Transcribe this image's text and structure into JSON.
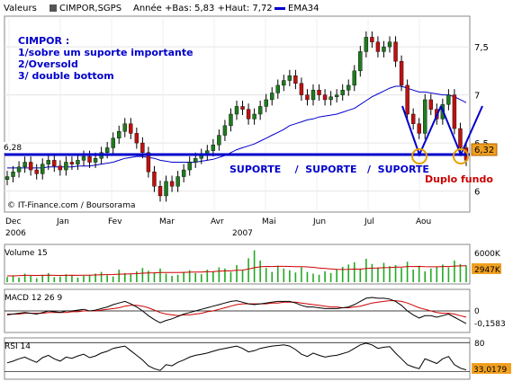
{
  "header": {
    "label_valeurs": "Valeurs",
    "ticker": "CIMPOR,SGPS",
    "range_text": "Année +Bas: 5,83 +Haut: 7,72",
    "ema_legend": "EMA34"
  },
  "annotations": {
    "note_title": "CIMPOR :",
    "note_line1": "1/sobre um suporte importante",
    "note_line2": "2/Oversold",
    "note_line3": "3/ double bottom",
    "support_label": "SUPORTE    /  SUPORTE   /  SUPORTE",
    "double_bottom": "Duplo fundo",
    "left_price": "6,28",
    "copyright": "© IT-Finance.com / Boursorama"
  },
  "colors": {
    "price_up": "#1f7a1f",
    "price_down": "#c01010",
    "ema": "#0000cc",
    "support": "#0000cc",
    "annotation_red": "#cc0000",
    "marker": "#e8a000",
    "last_price_bg": "#f0a020"
  },
  "chart_data": [
    {
      "type": "candlestick",
      "title": "CIMPOR,SGPS",
      "x_labels": [
        "Dec",
        "Jan",
        "Fev",
        "Mar",
        "Avr",
        "Mai",
        "Jun",
        "Jul",
        "Aou"
      ],
      "year_labels": [
        "2006",
        "2007"
      ],
      "y_ticks": [
        "7,5",
        "7",
        "6,5",
        "6"
      ],
      "ylim": [
        5.8,
        7.8
      ],
      "last_value": "6,32",
      "support_level": 6.28,
      "close": [
        6.15,
        6.2,
        6.25,
        6.3,
        6.22,
        6.18,
        6.28,
        6.32,
        6.26,
        6.22,
        6.3,
        6.28,
        6.32,
        6.36,
        6.3,
        6.34,
        6.4,
        6.45,
        6.55,
        6.62,
        6.7,
        6.6,
        6.5,
        6.4,
        6.2,
        6.05,
        5.95,
        6.1,
        6.05,
        6.15,
        6.22,
        6.3,
        6.34,
        6.38,
        6.42,
        6.48,
        6.58,
        6.68,
        6.8,
        6.88,
        6.85,
        6.75,
        6.8,
        6.88,
        6.95,
        7.02,
        7.1,
        7.15,
        7.2,
        7.12,
        7.0,
        6.95,
        7.05,
        7.0,
        6.95,
        6.98,
        7.0,
        7.05,
        7.1,
        7.25,
        7.45,
        7.6,
        7.55,
        7.45,
        7.5,
        7.55,
        7.35,
        7.1,
        6.8,
        6.7,
        6.6,
        6.95,
        6.85,
        6.75,
        6.9,
        7.0,
        6.65,
        6.45,
        6.32
      ],
      "ema34": [
        6.24,
        6.24,
        6.24,
        6.24,
        6.24,
        6.24,
        6.24,
        6.25,
        6.25,
        6.25,
        6.25,
        6.25,
        6.26,
        6.26,
        6.26,
        6.27,
        6.28,
        6.29,
        6.3,
        6.32,
        6.34,
        6.35,
        6.36,
        6.36,
        6.35,
        6.34,
        6.32,
        6.31,
        6.3,
        6.3,
        6.3,
        6.3,
        6.3,
        6.31,
        6.32,
        6.33,
        6.35,
        6.37,
        6.4,
        6.43,
        6.45,
        6.47,
        6.49,
        6.52,
        6.55,
        6.58,
        6.61,
        6.64,
        6.68,
        6.7,
        6.72,
        6.74,
        6.75,
        6.77,
        6.78,
        6.79,
        6.8,
        6.82,
        6.84,
        6.86,
        6.9,
        6.94,
        6.98,
        7.01,
        7.04,
        7.07,
        7.09,
        7.09,
        7.07,
        7.05,
        7.03,
        7.03,
        7.02,
        7.01,
        7.0,
        7.0,
        6.98,
        6.95,
        6.92
      ]
    },
    {
      "type": "bar",
      "title": "Volume 15",
      "y_ticks": [
        "6000K"
      ],
      "last_value": "2947K",
      "ylim": [
        0,
        6000
      ],
      "values": [
        900,
        1200,
        800,
        1500,
        1100,
        700,
        1300,
        1600,
        900,
        1000,
        1400,
        1200,
        800,
        1100,
        1300,
        1500,
        1800,
        1200,
        1000,
        2200,
        1600,
        1400,
        1900,
        2500,
        2000,
        1700,
        2400,
        1500,
        1100,
        1300,
        1800,
        2100,
        1600,
        1400,
        2200,
        1900,
        2600,
        2400,
        1800,
        3000,
        2200,
        4200,
        5600,
        3800,
        2500,
        1800,
        2900,
        2400,
        2100,
        1700,
        2600,
        1800,
        1500,
        1300,
        1900,
        1600,
        2300,
        2700,
        3100,
        3500,
        2400,
        4100,
        3200,
        2600,
        3400,
        2800,
        3000,
        2500,
        3600,
        2200,
        2900,
        1900,
        2400,
        2700,
        3100,
        2600,
        3800,
        3200,
        2947
      ],
      "ma": [
        1100,
        1100,
        1150,
        1200,
        1200,
        1180,
        1200,
        1220,
        1200,
        1180,
        1200,
        1220,
        1200,
        1210,
        1230,
        1260,
        1300,
        1320,
        1340,
        1400,
        1420,
        1450,
        1500,
        1580,
        1620,
        1650,
        1700,
        1710,
        1700,
        1690,
        1720,
        1760,
        1780,
        1790,
        1830,
        1860,
        1920,
        1970,
        1990,
        2080,
        2120,
        2300,
        2550,
        2700,
        2760,
        2740,
        2780,
        2780,
        2760,
        2720,
        2730,
        2680,
        2600,
        2500,
        2420,
        2320,
        2240,
        2220,
        2250,
        2300,
        2280,
        2400,
        2460,
        2480,
        2540,
        2580,
        2640,
        2660,
        2740,
        2740,
        2760,
        2720,
        2700,
        2700,
        2740,
        2740,
        2820,
        2860,
        2880
      ]
    },
    {
      "type": "line",
      "title": "MACD 12 26 9",
      "y_ticks": [
        "0"
      ],
      "last_value": "-0,1583",
      "ylim": [
        -0.25,
        0.25
      ],
      "macd": [
        -0.05,
        -0.04,
        -0.03,
        -0.02,
        -0.03,
        -0.04,
        -0.02,
        0.0,
        -0.01,
        -0.02,
        0.0,
        0.0,
        0.01,
        0.02,
        0.0,
        0.01,
        0.03,
        0.05,
        0.08,
        0.1,
        0.12,
        0.09,
        0.05,
        0.0,
        -0.06,
        -0.11,
        -0.15,
        -0.12,
        -0.1,
        -0.07,
        -0.04,
        -0.02,
        0.0,
        0.02,
        0.04,
        0.06,
        0.08,
        0.1,
        0.12,
        0.13,
        0.11,
        0.09,
        0.08,
        0.09,
        0.1,
        0.11,
        0.12,
        0.12,
        0.12,
        0.1,
        0.07,
        0.05,
        0.05,
        0.04,
        0.03,
        0.03,
        0.03,
        0.04,
        0.05,
        0.08,
        0.12,
        0.16,
        0.17,
        0.16,
        0.16,
        0.15,
        0.12,
        0.07,
        0.0,
        -0.05,
        -0.09,
        -0.06,
        -0.06,
        -0.08,
        -0.06,
        -0.04,
        -0.08,
        -0.12,
        -0.16
      ],
      "signal": [
        -0.04,
        -0.04,
        -0.04,
        -0.03,
        -0.03,
        -0.03,
        -0.03,
        -0.02,
        -0.02,
        -0.02,
        -0.02,
        -0.01,
        -0.01,
        0.0,
        0.0,
        0.0,
        0.01,
        0.02,
        0.03,
        0.04,
        0.06,
        0.07,
        0.07,
        0.06,
        0.04,
        0.01,
        -0.02,
        -0.04,
        -0.05,
        -0.06,
        -0.05,
        -0.05,
        -0.04,
        -0.03,
        -0.01,
        0.0,
        0.02,
        0.04,
        0.06,
        0.08,
        0.09,
        0.09,
        0.09,
        0.09,
        0.09,
        0.1,
        0.1,
        0.11,
        0.11,
        0.11,
        0.1,
        0.09,
        0.08,
        0.07,
        0.06,
        0.05,
        0.05,
        0.04,
        0.04,
        0.05,
        0.06,
        0.08,
        0.1,
        0.11,
        0.12,
        0.13,
        0.13,
        0.12,
        0.1,
        0.07,
        0.04,
        0.02,
        0.0,
        -0.02,
        -0.03,
        -0.03,
        -0.04,
        -0.06,
        -0.08
      ]
    },
    {
      "type": "line",
      "title": "RSI 14",
      "y_ticks": [
        "80"
      ],
      "last_value": "33,0179",
      "ylim": [
        20,
        85
      ],
      "values": [
        45,
        48,
        52,
        55,
        50,
        46,
        54,
        58,
        52,
        48,
        55,
        53,
        57,
        60,
        54,
        57,
        62,
        65,
        70,
        72,
        74,
        66,
        58,
        50,
        40,
        35,
        32,
        42,
        40,
        46,
        50,
        55,
        58,
        60,
        62,
        65,
        68,
        70,
        72,
        74,
        70,
        64,
        66,
        70,
        72,
        74,
        75,
        76,
        74,
        68,
        60,
        56,
        62,
        58,
        55,
        57,
        58,
        61,
        64,
        70,
        76,
        79,
        76,
        70,
        72,
        73,
        62,
        52,
        42,
        38,
        35,
        52,
        48,
        44,
        52,
        56,
        42,
        36,
        33
      ]
    }
  ]
}
